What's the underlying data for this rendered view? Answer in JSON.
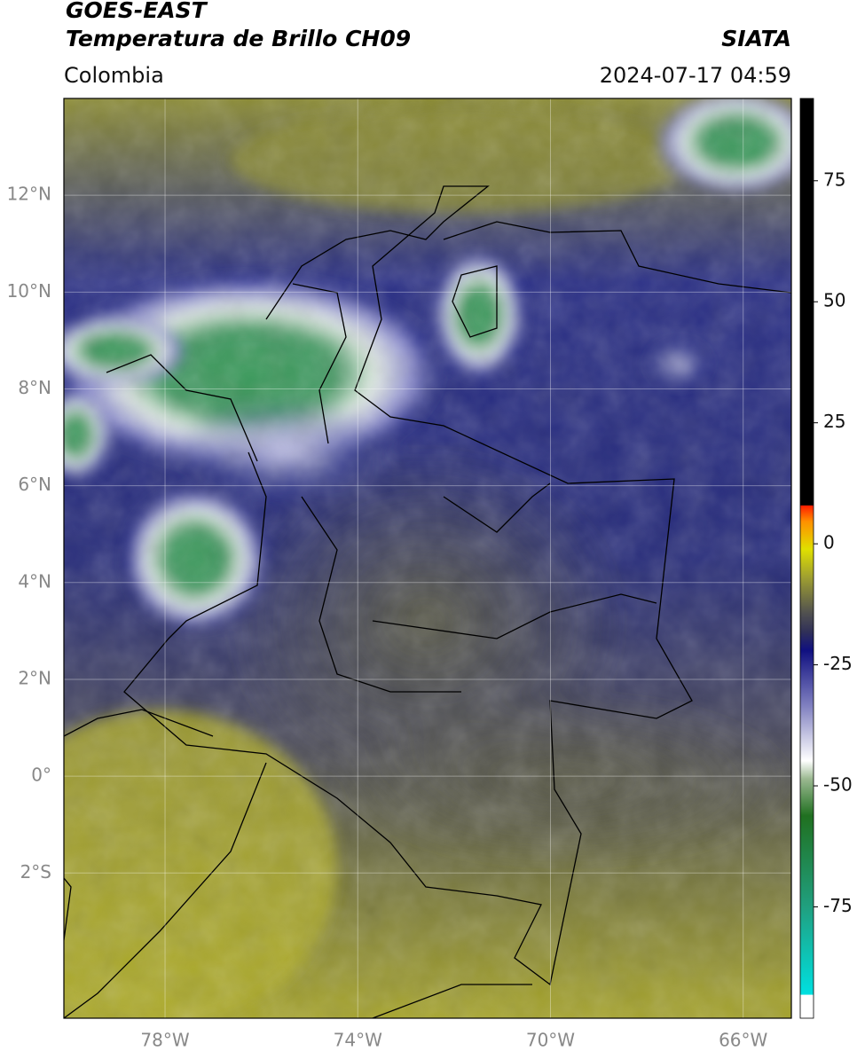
{
  "header": {
    "title": "GOES-EAST",
    "subtitle": "Temperatura de Brillo CH09",
    "source": "SIATA",
    "region": "Colombia",
    "datetime": "2024-07-17 04:59"
  },
  "map": {
    "xlim": [
      -80.1,
      -65
    ],
    "ylim": [
      -5,
      14
    ],
    "xticks": [
      {
        "value": -78,
        "label": "78°W"
      },
      {
        "value": -74,
        "label": "74°W"
      },
      {
        "value": -70,
        "label": "70°W"
      },
      {
        "value": -66,
        "label": "66°W"
      }
    ],
    "yticks": [
      {
        "value": 12,
        "label": "12°N"
      },
      {
        "value": 10,
        "label": "10°N"
      },
      {
        "value": 8,
        "label": "8°N"
      },
      {
        "value": 6,
        "label": "6°N"
      },
      {
        "value": 4,
        "label": "4°N"
      },
      {
        "value": 2,
        "label": "2°N"
      },
      {
        "value": 0,
        "label": "0°"
      },
      {
        "value": -2,
        "label": "2°S"
      }
    ],
    "grid": true
  },
  "colorbar": {
    "lim": [
      -98,
      92
    ],
    "ticks": [
      75,
      50,
      25,
      0,
      -25,
      -50,
      -75
    ]
  }
}
